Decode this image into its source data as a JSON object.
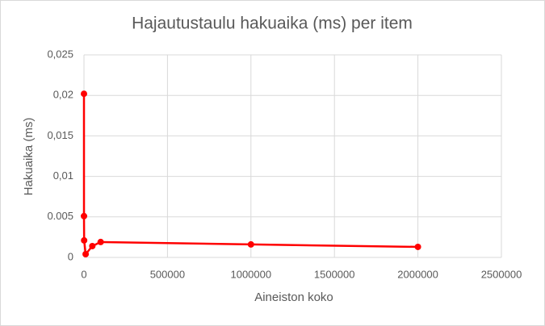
{
  "chart_data": {
    "type": "scatter-line",
    "title": "Hajautustaulu hakuaika (ms) per item",
    "x_label": "Aineiston koko",
    "y_label": "Hakuaika (ms)",
    "series": [
      {
        "name": "Hakuaika",
        "color": "#ff0000",
        "x": [
          10,
          100,
          1000,
          10000,
          50000,
          100000,
          1000000,
          2000000
        ],
        "values": [
          0.0202,
          0.0051,
          0.0021,
          0.0004,
          0.0014,
          0.0019,
          0.0016,
          0.0013
        ]
      }
    ],
    "xlim": [
      0,
      2500000
    ],
    "xticks": [
      0,
      500000,
      1000000,
      1500000,
      2000000,
      2500000
    ],
    "ylim": [
      0,
      0.025
    ],
    "yticks": [
      0,
      {
        "value": 0.005,
        "label": "0.005"
      },
      {
        "value": 0.01,
        "label": "0,01"
      },
      {
        "value": 0.015,
        "label": "0,015"
      },
      {
        "value": 0.02,
        "label": "0,02"
      },
      {
        "value": 0.025,
        "label": "0,025"
      }
    ],
    "grid": true
  }
}
